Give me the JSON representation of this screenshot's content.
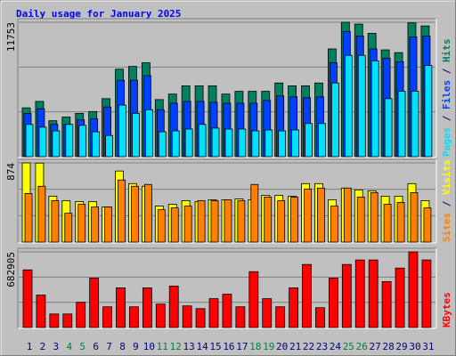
{
  "chart_data": [
    {
      "type": "bar",
      "title": "Daily usage for January 2025",
      "ylim": [
        0,
        11753
      ],
      "yticks": [
        11753
      ],
      "series": [
        {
          "name": "Hits",
          "color": "#008060",
          "values": [
            4267,
            4830,
            3140,
            3462,
            3784,
            3945,
            5072,
            7648,
            7889,
            8211,
            4991,
            5474,
            6199,
            6199,
            6199,
            5474,
            5716,
            5716,
            5716,
            6440,
            6199,
            6199,
            6440,
            9419,
            11753,
            11592,
            10787,
            9338,
            9097,
            11700,
            11431
          ]
        },
        {
          "name": "Files",
          "color": "#0040ff",
          "values": [
            3784,
            4186,
            2818,
            2818,
            3220,
            3301,
            4347,
            6682,
            6682,
            7084,
            4106,
            4669,
            4830,
            4830,
            4750,
            4669,
            4669,
            4669,
            4911,
            5313,
            5233,
            5152,
            5233,
            8211,
            10948,
            10546,
            9419,
            8614,
            8292,
            10465,
            10546
          ]
        },
        {
          "name": "Pages",
          "color": "#00e0ff",
          "values": [
            2818,
            2576,
            2254,
            2818,
            2737,
            2174,
            1852,
            4508,
            3784,
            4106,
            2174,
            2254,
            2415,
            2818,
            2496,
            2415,
            2415,
            2254,
            2335,
            2254,
            2335,
            2898,
            2898,
            6440,
            8855,
            8855,
            8372,
            5072,
            5716,
            5716,
            7970
          ]
        }
      ]
    },
    {
      "type": "bar",
      "ylim": [
        0,
        874
      ],
      "yticks": [
        874
      ],
      "series": [
        {
          "name": "Visits",
          "color": "#ffff00",
          "values": [
            874,
            872,
            506,
            457,
            447,
            447,
            387,
            784,
            645,
            616,
            397,
            417,
            457,
            447,
            467,
            467,
            477,
            467,
            516,
            516,
            506,
            645,
            645,
            467,
            596,
            576,
            566,
            506,
            506,
            645,
            457
          ]
        },
        {
          "name": "Sites",
          "color": "#ff8000",
          "values": [
            536,
            616,
            457,
            318,
            417,
            387,
            387,
            685,
            616,
            636,
            357,
            377,
            397,
            457,
            457,
            467,
            457,
            636,
            497,
            457,
            497,
            586,
            596,
            397,
            596,
            497,
            546,
            417,
            437,
            546,
            377
          ]
        }
      ]
    },
    {
      "type": "bar",
      "ylim": [
        0,
        682905
      ],
      "yticks": [
        682905
      ],
      "categories": [
        "1",
        "2",
        "3",
        "4",
        "5",
        "6",
        "7",
        "8",
        "9",
        "10",
        "11",
        "12",
        "13",
        "14",
        "15",
        "16",
        "17",
        "18",
        "19",
        "20",
        "21",
        "22",
        "23",
        "24",
        "25",
        "26",
        "27",
        "28",
        "29",
        "30",
        "31"
      ],
      "highlighted_categories": [
        "4",
        "5",
        "11",
        "12",
        "18",
        "19",
        "25",
        "26"
      ],
      "highlight_color": "#008040",
      "series": [
        {
          "name": "KBytes",
          "color": "#ff0000",
          "values": [
            520300,
            292700,
            121950,
            121950,
            227640,
            447150,
            187000,
            357720,
            187000,
            357720,
            211380,
            373980,
            195120,
            170730,
            260160,
            300810,
            187000,
            504060,
            260160,
            187000,
            357720,
            569100,
            178860,
            447150,
            569100,
            609750,
            609750,
            414630,
            536580,
            682905,
            609750
          ]
        }
      ]
    }
  ]
}
